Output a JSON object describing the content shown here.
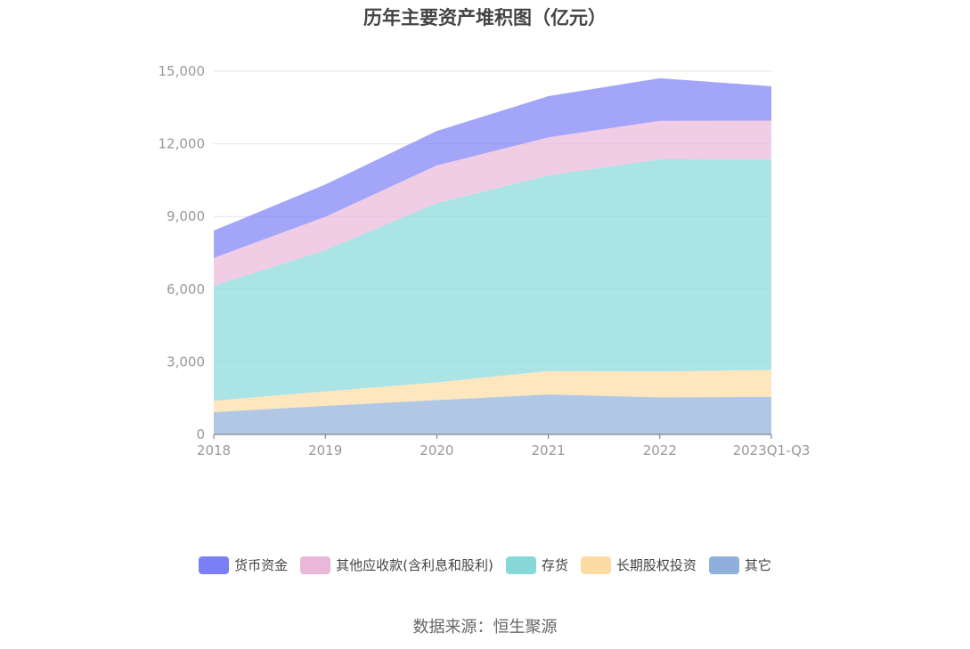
{
  "title": "历年主要资产堆积图（亿元）",
  "source": "数据来源：恒生聚源",
  "chart_data": {
    "type": "area",
    "stacked": true,
    "categories": [
      "2018",
      "2019",
      "2020",
      "2021",
      "2022",
      "2023Q1-Q3"
    ],
    "series": [
      {
        "name": "其它",
        "color": "#8fb0dc",
        "values": [
          920,
          1180,
          1420,
          1650,
          1530,
          1550
        ]
      },
      {
        "name": "长期股权投资",
        "color": "#fddca3",
        "values": [
          470,
          600,
          730,
          970,
          1070,
          1120
        ]
      },
      {
        "name": "存货",
        "color": "#87d9d9",
        "values": [
          4750,
          5830,
          7400,
          8080,
          8760,
          8700
        ]
      },
      {
        "name": "其他应收款(含利息和股利)",
        "color": "#e9b8d8",
        "values": [
          1150,
          1380,
          1560,
          1570,
          1590,
          1590
        ]
      },
      {
        "name": "货币资金",
        "color": "#7b7ff5",
        "values": [
          1130,
          1330,
          1420,
          1700,
          1760,
          1420
        ]
      }
    ],
    "y_ticks": [
      "0",
      "3,000",
      "6,000",
      "9,000",
      "12,000",
      "15,000"
    ],
    "ylim": [
      0,
      15000
    ],
    "grid": true,
    "legend_position": "bottom",
    "legend_order": [
      "货币资金",
      "其他应收款(含利息和股利)",
      "存货",
      "长期股权投资",
      "其它"
    ]
  }
}
